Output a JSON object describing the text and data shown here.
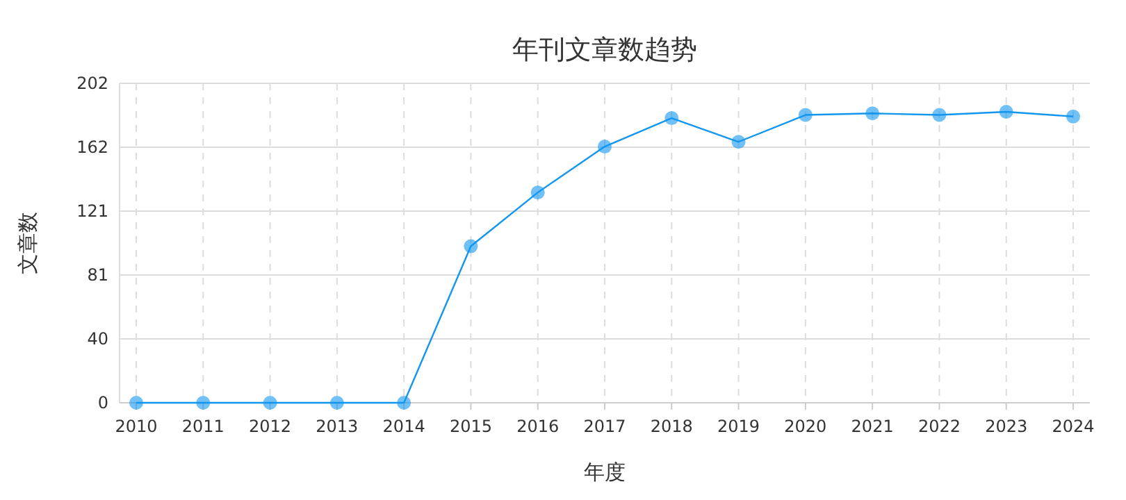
{
  "chart_data": {
    "type": "line",
    "title": "年刊文章数趋势",
    "xlabel": "年度",
    "ylabel": "文章数",
    "categories": [
      "2010",
      "2011",
      "2012",
      "2013",
      "2014",
      "2015",
      "2016",
      "2017",
      "2018",
      "2019",
      "2020",
      "2021",
      "2022",
      "2023",
      "2024"
    ],
    "series": [
      {
        "color": "#1296f0",
        "values": [
          0,
          0,
          0,
          0,
          0,
          99,
          133,
          162,
          180,
          165,
          182,
          183,
          182,
          184,
          181
        ]
      }
    ],
    "ylim": [
      0,
      202
    ],
    "yticks": [
      0,
      {
        "value": 40.4,
        "label": "40"
      },
      {
        "value": 80.8,
        "label": "81"
      },
      {
        "value": 121.2,
        "label": "121"
      },
      {
        "value": 161.6,
        "label": "162"
      },
      202
    ],
    "grid": true,
    "marker": "circle",
    "line_style": "solid"
  }
}
